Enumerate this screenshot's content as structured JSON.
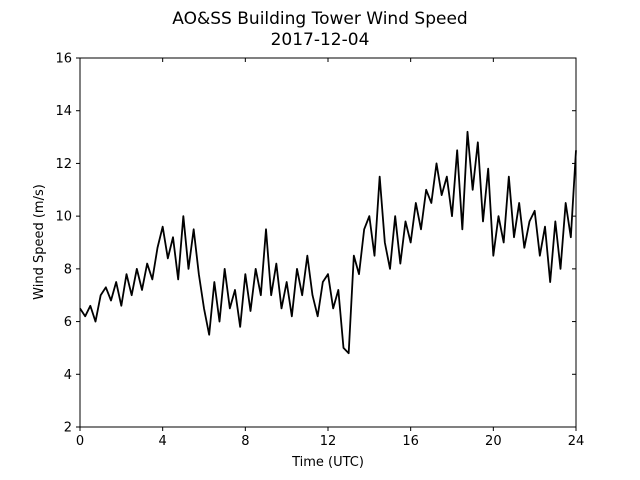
{
  "chart_data": {
    "type": "line",
    "title": "AO&SS Building Tower Wind Speed",
    "subtitle": "2017-12-04",
    "x_label": "Time (UTC)",
    "y_label": "Wind Speed (m/s)",
    "x": [
      0,
      0.25,
      0.5,
      0.75,
      1,
      1.25,
      1.5,
      1.75,
      2,
      2.25,
      2.5,
      2.75,
      3,
      3.25,
      3.5,
      3.75,
      4,
      4.25,
      4.5,
      4.75,
      5,
      5.25,
      5.5,
      5.75,
      6,
      6.25,
      6.5,
      6.75,
      7,
      7.25,
      7.5,
      7.75,
      8,
      8.25,
      8.5,
      8.75,
      9,
      9.25,
      9.5,
      9.75,
      10,
      10.25,
      10.5,
      10.75,
      11,
      11.25,
      11.5,
      11.75,
      12,
      12.25,
      12.5,
      12.75,
      13,
      13.25,
      13.5,
      13.75,
      14,
      14.25,
      14.5,
      14.75,
      15,
      15.25,
      15.5,
      15.75,
      16,
      16.25,
      16.5,
      16.75,
      17,
      17.25,
      17.5,
      17.75,
      18,
      18.25,
      18.5,
      18.75,
      19,
      19.25,
      19.5,
      19.75,
      20,
      20.25,
      20.5,
      20.75,
      21,
      21.25,
      21.5,
      21.75,
      22,
      22.25,
      22.5,
      22.75,
      23,
      23.25,
      23.5,
      23.75,
      24
    ],
    "series": [
      {
        "name": "Wind Speed",
        "color": "#000000",
        "values": [
          6.5,
          6.2,
          6.6,
          6.0,
          7.0,
          7.3,
          6.8,
          7.5,
          6.6,
          7.8,
          7.0,
          8.0,
          7.2,
          8.2,
          7.6,
          8.8,
          9.6,
          8.4,
          9.2,
          7.6,
          10.0,
          8.0,
          9.5,
          7.8,
          6.5,
          5.5,
          7.5,
          6.0,
          8.0,
          6.5,
          7.2,
          5.8,
          7.8,
          6.4,
          8.0,
          7.0,
          9.5,
          7.0,
          8.2,
          6.5,
          7.5,
          6.2,
          8.0,
          7.0,
          8.5,
          7.0,
          6.2,
          7.5,
          7.8,
          6.5,
          7.2,
          5.0,
          4.8,
          8.5,
          7.8,
          9.5,
          10.0,
          8.5,
          11.5,
          9.0,
          8.0,
          10.0,
          8.2,
          9.8,
          9.0,
          10.5,
          9.5,
          11.0,
          10.5,
          12.0,
          10.8,
          11.5,
          10.0,
          12.5,
          9.5,
          13.2,
          11.0,
          12.8,
          9.8,
          11.8,
          8.5,
          10.0,
          9.0,
          11.5,
          9.2,
          10.5,
          8.8,
          9.8,
          10.2,
          8.5,
          9.6,
          7.5,
          9.8,
          8.0,
          10.5,
          9.2,
          12.5
        ]
      }
    ],
    "xlim": [
      0,
      24
    ],
    "xticks": [
      0,
      4,
      8,
      12,
      16,
      20,
      24
    ],
    "ylim": [
      2,
      16
    ],
    "yticks": [
      2,
      4,
      6,
      8,
      10,
      12,
      14,
      16
    ]
  }
}
